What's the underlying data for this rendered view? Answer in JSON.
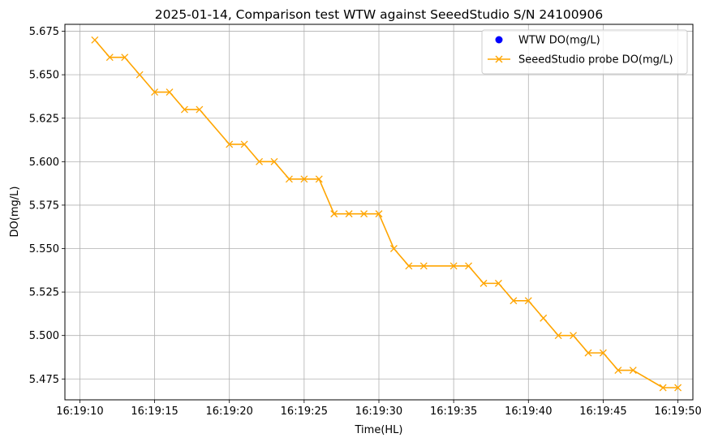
{
  "chart_data": {
    "type": "line",
    "title": "2025-01-14, Comparison test WTW against SeeedStudio S/N 24100906",
    "xlabel": "Time(HL)",
    "ylabel": "DO(mg/L)",
    "x_ticks": [
      "16:19:10",
      "16:19:15",
      "16:19:20",
      "16:19:25",
      "16:19:30",
      "16:19:35",
      "16:19:40",
      "16:19:45",
      "16:19:50"
    ],
    "y_ticks": [
      "5.475",
      "5.500",
      "5.525",
      "5.550",
      "5.575",
      "5.600",
      "5.625",
      "5.650",
      "5.675"
    ],
    "xlim": [
      "16:19:09",
      "16:19:51"
    ],
    "ylim": [
      5.463,
      5.679
    ],
    "grid": true,
    "legend_position": "top-right",
    "series": [
      {
        "name": "WTW DO(mg/L)",
        "marker": "circle",
        "color": "#0000ff",
        "x": [],
        "y": []
      },
      {
        "name": "SeeedStudio probe DO(mg/L)",
        "marker": "x",
        "color": "#ffa500",
        "x": [
          "16:19:11",
          "16:19:12",
          "16:19:13",
          "16:19:14",
          "16:19:15",
          "16:19:16",
          "16:19:17",
          "16:19:18",
          "16:19:20",
          "16:19:21",
          "16:19:22",
          "16:19:23",
          "16:19:24",
          "16:19:25",
          "16:19:26",
          "16:19:27",
          "16:19:28",
          "16:19:29",
          "16:19:30",
          "16:19:31",
          "16:19:32",
          "16:19:33",
          "16:19:35",
          "16:19:36",
          "16:19:37",
          "16:19:38",
          "16:19:39",
          "16:19:40",
          "16:19:41",
          "16:19:42",
          "16:19:43",
          "16:19:44",
          "16:19:45",
          "16:19:46",
          "16:19:47",
          "16:19:49",
          "16:19:50"
        ],
        "y": [
          5.67,
          5.66,
          5.66,
          5.65,
          5.64,
          5.64,
          5.63,
          5.63,
          5.61,
          5.61,
          5.6,
          5.6,
          5.59,
          5.59,
          5.59,
          5.57,
          5.57,
          5.57,
          5.57,
          5.55,
          5.54,
          5.54,
          5.54,
          5.54,
          5.53,
          5.53,
          5.52,
          5.52,
          5.51,
          5.5,
          5.5,
          5.49,
          5.49,
          5.48,
          5.48,
          5.47,
          5.47
        ]
      }
    ]
  }
}
